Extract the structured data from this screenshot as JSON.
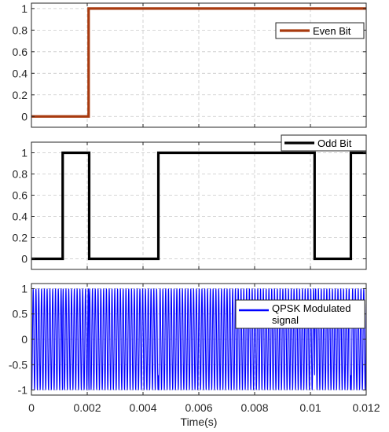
{
  "chart_data": [
    {
      "type": "line",
      "title": "",
      "xlabel": "",
      "ylabel": "",
      "xlim": [
        0,
        0.012
      ],
      "ylim": [
        -0.1,
        1.05
      ],
      "yticks": [
        0,
        0.2,
        0.4,
        0.6,
        0.8,
        1
      ],
      "ytick_labels": [
        "0",
        "0.2",
        "0.4",
        "0.6",
        "0.8",
        "1"
      ],
      "grid": true,
      "legend_position": "top-right",
      "series": [
        {
          "name": "Even Bit",
          "color": "#a83a0f",
          "step_x": [
            0,
            0.00205,
            0.012
          ],
          "step_y": [
            0,
            1,
            1
          ]
        }
      ]
    },
    {
      "type": "line",
      "title": "",
      "xlabel": "",
      "ylabel": "",
      "xlim": [
        0,
        0.012
      ],
      "ylim": [
        -0.1,
        1.1
      ],
      "yticks": [
        0,
        0.2,
        0.4,
        0.6,
        0.8,
        1
      ],
      "ytick_labels": [
        "0",
        "0.2",
        "0.4",
        "0.6",
        "0.8",
        "1"
      ],
      "grid": true,
      "legend_position": "top-right",
      "series": [
        {
          "name": "Odd Bit",
          "color": "#000000",
          "step_x": [
            0,
            0.00112,
            0.00207,
            0.00455,
            0.01015,
            0.01145,
            0.012
          ],
          "step_y": [
            0,
            1,
            0,
            1,
            0,
            1,
            1
          ]
        }
      ]
    },
    {
      "type": "line",
      "title": "",
      "xlabel": "Time(s)",
      "ylabel": "",
      "xlim": [
        0,
        0.012
      ],
      "ylim": [
        -1.1,
        1.1
      ],
      "yticks": [
        -1,
        -0.5,
        0,
        0.5,
        1
      ],
      "ytick_labels": [
        "-1",
        "-0.5",
        "0",
        "0.5",
        "1"
      ],
      "xticks": [
        0,
        0.002,
        0.004,
        0.006,
        0.008,
        0.01,
        0.012
      ],
      "xtick_labels": [
        "0",
        "0.002",
        "0.004",
        "0.006",
        "0.008",
        "0.01",
        "0.012"
      ],
      "grid": true,
      "legend_position": "top-right",
      "series": [
        {
          "name": "QPSK Modulated\nsignal",
          "color": "#0000ff",
          "carrier_frequency_hz": 10000,
          "amplitude": 1
        }
      ]
    }
  ]
}
